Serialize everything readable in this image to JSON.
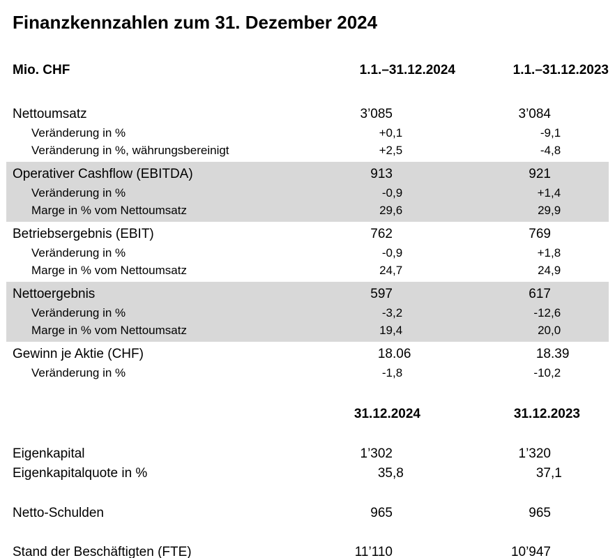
{
  "title": "Finanzkennzahlen zum 31. Dezember 2024",
  "colors": {
    "shaded_row_background": "#d8d8d8",
    "text": "#000000",
    "page_background": "#ffffff"
  },
  "table": {
    "unit_label": "Mio. CHF",
    "period_headers": [
      "1.1.–31.12.2024",
      "1.1.–31.12.2023"
    ],
    "groups": [
      {
        "shaded": false,
        "rows": [
          {
            "label": "Nettoumsatz",
            "indent": false,
            "v2024": "3’085",
            "v2023": "3’084"
          },
          {
            "label": "Veränderung in %",
            "indent": true,
            "v2024": "+0,1",
            "v2023": "-9,1"
          },
          {
            "label": "Veränderung in %, währungsbereinigt",
            "indent": true,
            "v2024": "+2,5",
            "v2023": "-4,8"
          }
        ]
      },
      {
        "shaded": true,
        "rows": [
          {
            "label": "Operativer Cashflow (EBITDA)",
            "indent": false,
            "v2024": "913",
            "v2023": "921"
          },
          {
            "label": "Veränderung in %",
            "indent": true,
            "v2024": "-0,9",
            "v2023": "+1,4"
          },
          {
            "label": "Marge in % vom Nettoumsatz",
            "indent": true,
            "v2024": "29,6",
            "v2023": "29,9"
          }
        ]
      },
      {
        "shaded": false,
        "rows": [
          {
            "label": "Betriebsergebnis (EBIT)",
            "indent": false,
            "v2024": "762",
            "v2023": "769"
          },
          {
            "label": "Veränderung in %",
            "indent": true,
            "v2024": "-0,9",
            "v2023": "+1,8"
          },
          {
            "label": "Marge in % vom Nettoumsatz",
            "indent": true,
            "v2024": "24,7",
            "v2023": "24,9"
          }
        ]
      },
      {
        "shaded": true,
        "rows": [
          {
            "label": "Nettoergebnis",
            "indent": false,
            "v2024": "597",
            "v2023": "617"
          },
          {
            "label": "Veränderung in %",
            "indent": true,
            "v2024": "-3,2",
            "v2023": "-12,6"
          },
          {
            "label": "Marge in % vom Nettoumsatz",
            "indent": true,
            "v2024": "19,4",
            "v2023": "20,0"
          }
        ]
      },
      {
        "shaded": false,
        "rows": [
          {
            "label": "Gewinn je Aktie (CHF)",
            "indent": false,
            "v2024": "18.06",
            "v2023": "18.39"
          },
          {
            "label": "Veränderung in %",
            "indent": true,
            "v2024": "-1,8",
            "v2023": "-10,2"
          }
        ]
      }
    ],
    "date_headers": [
      "31.12.2024",
      "31.12.2023"
    ],
    "balance_groups": [
      {
        "rows": [
          {
            "label": "Eigenkapital",
            "v2024": "1’302",
            "v2023": "1’320"
          },
          {
            "label": "Eigenkapitalquote in %",
            "v2024": "35,8",
            "v2023": "37,1"
          }
        ]
      },
      {
        "rows": [
          {
            "label": "Netto-Schulden",
            "v2024": "965",
            "v2023": "965"
          }
        ]
      },
      {
        "rows": [
          {
            "label": "Stand der Beschäftigten (FTE)",
            "v2024": "11’110",
            "v2023": "10’947"
          }
        ]
      }
    ]
  }
}
